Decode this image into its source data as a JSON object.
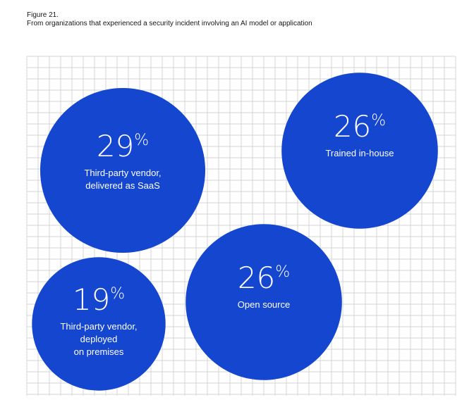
{
  "figure": {
    "label": "Figure 21.",
    "caption": "From organizations that experienced a security incident involving an AI model or application"
  },
  "colors": {
    "bubble": "#1446d0",
    "grid": "#d6d6d6",
    "text": "#ffffff"
  },
  "chart_data": {
    "type": "bubble",
    "title": "From organizations that experienced a security incident involving an AI model or application",
    "unit": "%",
    "series": [
      {
        "name": "Third-party vendor, delivered as SaaS",
        "value": 29,
        "label_lines": [
          "Third-party vendor,",
          "delivered as SaaS"
        ]
      },
      {
        "name": "Trained in-house",
        "value": 26,
        "label_lines": [
          "Trained in-house"
        ]
      },
      {
        "name": "Open source",
        "value": 26,
        "label_lines": [
          "Open source"
        ]
      },
      {
        "name": "Third-party vendor, deployed on premises",
        "value": 19,
        "label_lines": [
          "Third-party vendor,",
          "deployed",
          "on premises"
        ]
      }
    ]
  }
}
